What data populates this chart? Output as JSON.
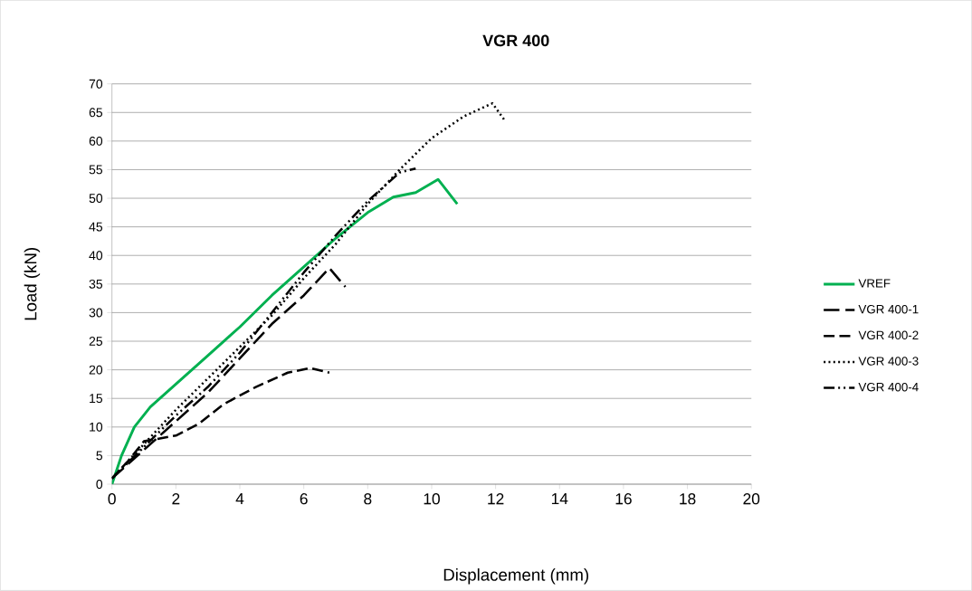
{
  "chart_data": {
    "type": "line",
    "title": "VGR 400",
    "xlabel": "Displacement (mm)",
    "ylabel": "Load (kN)",
    "xlim": [
      0,
      20
    ],
    "xticks": [
      0,
      2,
      4,
      6,
      8,
      10,
      12,
      14,
      16,
      18,
      20
    ],
    "ylim": [
      0,
      70
    ],
    "yticks": [
      0,
      5,
      10,
      15,
      20,
      25,
      30,
      35,
      40,
      45,
      50,
      55,
      60,
      65,
      70
    ],
    "grid": "y",
    "legend": "right",
    "marker": "none",
    "series": [
      {
        "name": "VREF",
        "color": "#00b050",
        "line_style": "solid",
        "x": [
          0,
          0.3,
          0.7,
          1.2,
          2,
          3,
          4,
          5,
          6,
          7,
          8,
          8.8,
          9.5,
          10.2,
          10.8
        ],
        "values": [
          0,
          5,
          10,
          13.5,
          17.5,
          22.5,
          27.5,
          33,
          38,
          43,
          47.5,
          50.2,
          51,
          53.3,
          49
        ]
      },
      {
        "name": "VGR 400-1",
        "color": "#000000",
        "line_style": "dashed",
        "x": [
          0,
          1,
          2,
          3,
          4,
          5,
          6,
          6.8,
          7.3
        ],
        "values": [
          1,
          6,
          11,
          16,
          22,
          28,
          33,
          37.8,
          34.5
        ]
      },
      {
        "name": "VGR 400-2",
        "color": "#000000",
        "line_style": "dashed",
        "x": [
          0,
          0.5,
          1,
          2,
          2.7,
          3.5,
          4.5,
          5.5,
          6.2,
          6.8
        ],
        "values": [
          1,
          4,
          7.5,
          8.5,
          10.5,
          14,
          17,
          19.5,
          20.3,
          19.5
        ]
      },
      {
        "name": "VGR 400-3",
        "color": "#000000",
        "line_style": "dotted",
        "x": [
          0,
          1,
          2,
          3,
          4,
          5,
          6,
          7,
          8,
          9,
          10,
          11,
          11.9,
          12.3
        ],
        "values": [
          1,
          7,
          13,
          18.5,
          24,
          29.5,
          36,
          42,
          49,
          55,
          60.5,
          64.3,
          66.6,
          63.5
        ]
      },
      {
        "name": "VGR 400-4",
        "color": "#000000",
        "line_style": "dashdotted",
        "x": [
          0,
          1,
          2,
          3,
          4,
          5,
          6,
          7,
          8,
          9,
          9.5
        ],
        "values": [
          1,
          6.5,
          12,
          17,
          23,
          30,
          37,
          43.5,
          49.5,
          54.5,
          55.2
        ]
      }
    ]
  }
}
